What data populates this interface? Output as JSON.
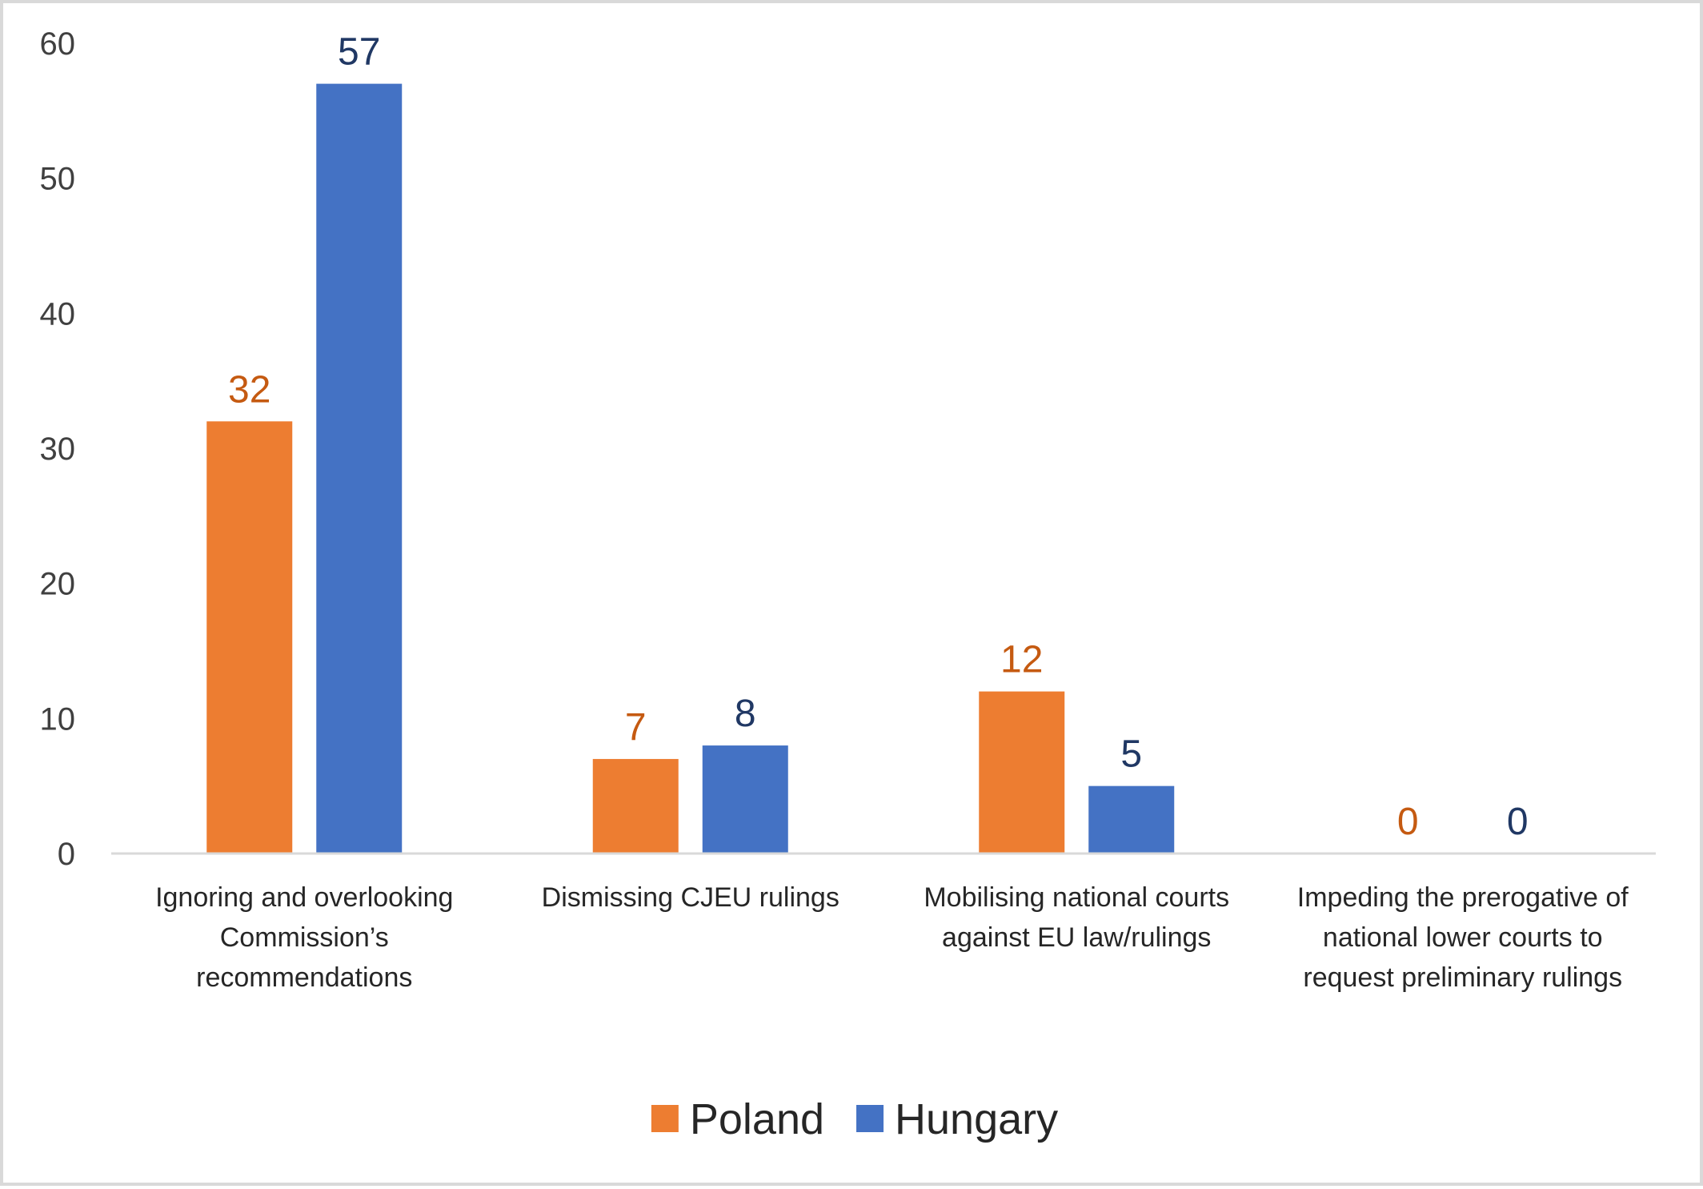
{
  "chart_data": {
    "type": "bar",
    "title": "",
    "xlabel": "",
    "ylabel": "",
    "categories": [
      [
        "Ignoring and overlooking",
        "Commission’s",
        "recommendations"
      ],
      [
        "Dismissing CJEU rulings"
      ],
      [
        "Mobilising national courts",
        "against EU law/rulings"
      ],
      [
        "Impeding the prerogative of",
        "national lower courts to",
        "request preliminary rulings"
      ]
    ],
    "series": [
      {
        "name": "Poland",
        "color": "#ED7D31",
        "label_color": "#C55A11",
        "values": [
          32,
          7,
          12,
          0
        ]
      },
      {
        "name": "Hungary",
        "color": "#4472C4",
        "label_color": "#203864",
        "values": [
          57,
          8,
          5,
          0
        ]
      }
    ],
    "ylim": [
      0,
      60
    ],
    "yticks": [
      0,
      10,
      20,
      30,
      40,
      50,
      60
    ],
    "grid": false,
    "legend_position": "bottom",
    "data_labels": true
  }
}
